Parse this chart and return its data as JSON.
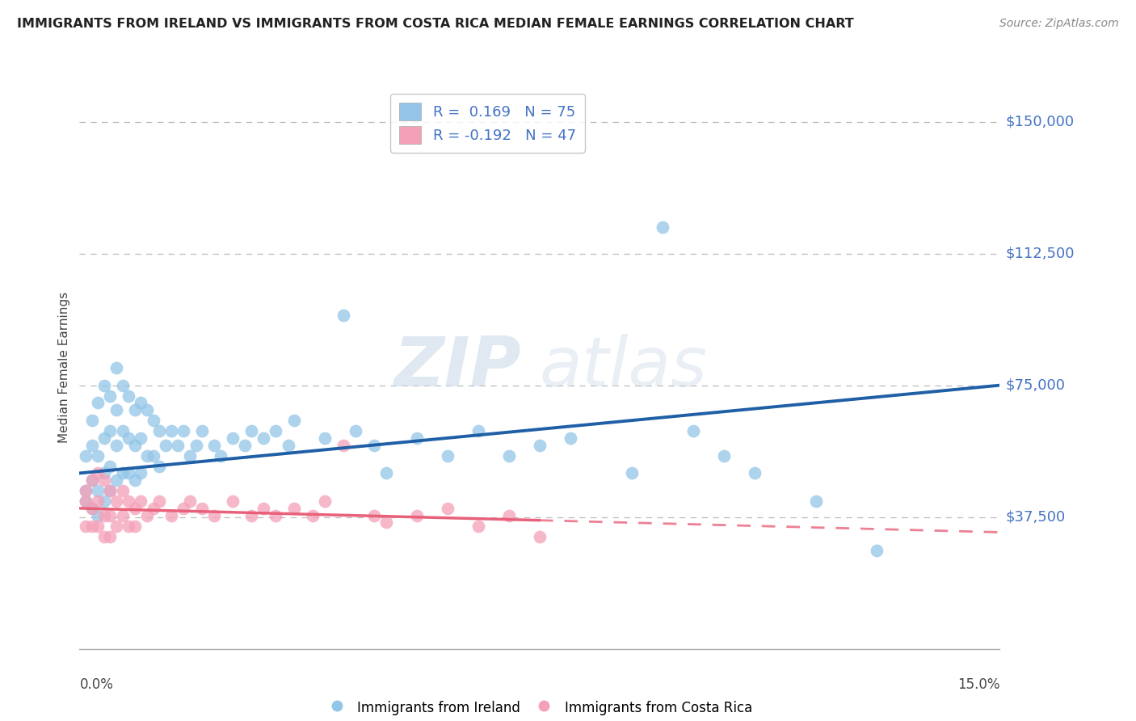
{
  "title": "IMMIGRANTS FROM IRELAND VS IMMIGRANTS FROM COSTA RICA MEDIAN FEMALE EARNINGS CORRELATION CHART",
  "source": "Source: ZipAtlas.com",
  "ylabel": "Median Female Earnings",
  "watermark_zip": "ZIP",
  "watermark_atlas": "atlas",
  "ireland_R": 0.169,
  "ireland_N": 75,
  "costarica_R": -0.192,
  "costarica_N": 47,
  "ireland_color": "#92C5E8",
  "costarica_color": "#F4A0B8",
  "ireland_line_color": "#1F5FA6",
  "costarica_line_color": "#E8607A",
  "xlim": [
    0.0,
    0.15
  ],
  "ylim": [
    0,
    160000
  ],
  "ytick_vals": [
    37500,
    75000,
    112500,
    150000
  ],
  "ytick_labels": [
    "$37,500",
    "$75,000",
    "$112,500",
    "$150,000"
  ],
  "legend_text_color": "#4472C4",
  "title_color": "#222222",
  "source_color": "#888888",
  "ireland_x": [
    0.001,
    0.001,
    0.001,
    0.002,
    0.002,
    0.002,
    0.002,
    0.003,
    0.003,
    0.003,
    0.003,
    0.004,
    0.004,
    0.004,
    0.004,
    0.005,
    0.005,
    0.005,
    0.005,
    0.006,
    0.006,
    0.006,
    0.006,
    0.007,
    0.007,
    0.007,
    0.008,
    0.008,
    0.008,
    0.009,
    0.009,
    0.009,
    0.01,
    0.01,
    0.01,
    0.011,
    0.011,
    0.012,
    0.012,
    0.013,
    0.013,
    0.014,
    0.015,
    0.016,
    0.017,
    0.018,
    0.019,
    0.02,
    0.022,
    0.023,
    0.025,
    0.027,
    0.028,
    0.03,
    0.032,
    0.034,
    0.035,
    0.04,
    0.043,
    0.045,
    0.048,
    0.05,
    0.055,
    0.06,
    0.065,
    0.07,
    0.075,
    0.08,
    0.09,
    0.095,
    0.1,
    0.105,
    0.11,
    0.12,
    0.13
  ],
  "ireland_y": [
    55000,
    45000,
    42000,
    65000,
    58000,
    48000,
    40000,
    70000,
    55000,
    45000,
    38000,
    75000,
    60000,
    50000,
    42000,
    72000,
    62000,
    52000,
    45000,
    80000,
    68000,
    58000,
    48000,
    75000,
    62000,
    50000,
    72000,
    60000,
    50000,
    68000,
    58000,
    48000,
    70000,
    60000,
    50000,
    68000,
    55000,
    65000,
    55000,
    62000,
    52000,
    58000,
    62000,
    58000,
    62000,
    55000,
    58000,
    62000,
    58000,
    55000,
    60000,
    58000,
    62000,
    60000,
    62000,
    58000,
    65000,
    60000,
    95000,
    62000,
    58000,
    50000,
    60000,
    55000,
    62000,
    55000,
    58000,
    60000,
    50000,
    120000,
    62000,
    55000,
    50000,
    42000,
    28000
  ],
  "costarica_x": [
    0.001,
    0.001,
    0.001,
    0.002,
    0.002,
    0.002,
    0.003,
    0.003,
    0.003,
    0.004,
    0.004,
    0.004,
    0.005,
    0.005,
    0.005,
    0.006,
    0.006,
    0.007,
    0.007,
    0.008,
    0.008,
    0.009,
    0.009,
    0.01,
    0.011,
    0.012,
    0.013,
    0.015,
    0.017,
    0.018,
    0.02,
    0.022,
    0.025,
    0.028,
    0.03,
    0.032,
    0.035,
    0.038,
    0.04,
    0.043,
    0.048,
    0.05,
    0.055,
    0.06,
    0.065,
    0.07,
    0.075
  ],
  "costarica_y": [
    45000,
    42000,
    35000,
    48000,
    40000,
    35000,
    50000,
    42000,
    35000,
    48000,
    38000,
    32000,
    45000,
    38000,
    32000,
    42000,
    35000,
    45000,
    38000,
    42000,
    35000,
    40000,
    35000,
    42000,
    38000,
    40000,
    42000,
    38000,
    40000,
    42000,
    40000,
    38000,
    42000,
    38000,
    40000,
    38000,
    40000,
    38000,
    42000,
    58000,
    38000,
    36000,
    38000,
    40000,
    35000,
    38000,
    32000
  ]
}
